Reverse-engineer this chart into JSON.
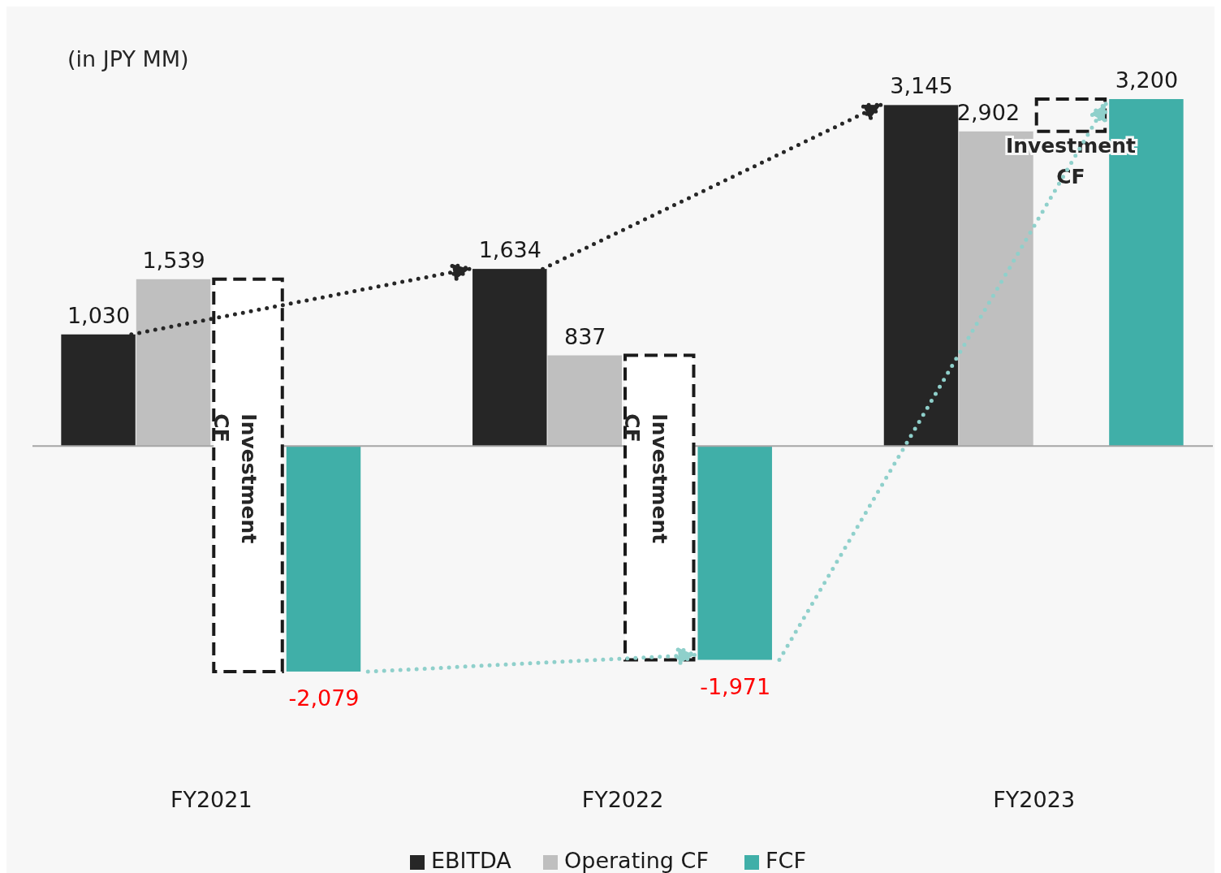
{
  "chart_data": {
    "type": "bar",
    "title": "(in JPY MM)",
    "categories": [
      "FY2021",
      "FY2022",
      "FY2023"
    ],
    "series": [
      {
        "name": "EBITDA",
        "color": "#262626",
        "values": [
          1030,
          1634,
          3145
        ],
        "value_labels": [
          "1,030",
          "1,634",
          "3,145"
        ]
      },
      {
        "name": "Operating CF",
        "color": "#bfbfbf",
        "values": [
          1539,
          837,
          2902
        ],
        "value_labels": [
          "1,539",
          "837",
          "2,902"
        ]
      },
      {
        "name": "FCF",
        "color": "#40afa8",
        "values": [
          -2079,
          -1971,
          3200
        ],
        "value_labels": [
          "-2,079",
          "-1,971",
          "3,200"
        ]
      }
    ],
    "annotations": [
      "Investment CF",
      "Investment CF",
      "Investment CF"
    ],
    "legend": "bottom",
    "grid": false
  }
}
